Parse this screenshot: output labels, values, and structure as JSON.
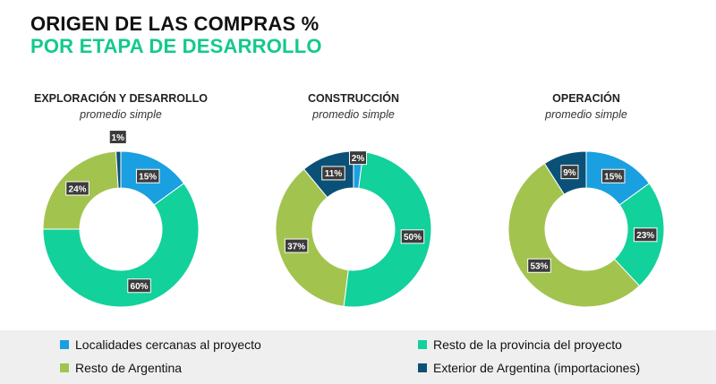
{
  "title": {
    "line1": "ORIGEN DE LAS COMPRAS %",
    "line2": "POR ETAPA DE DESARROLLO"
  },
  "colors": {
    "localidades": "#1a9fe0",
    "provincia": "#12d19a",
    "argentina": "#a3c34f",
    "exterior": "#0b5177"
  },
  "chart_data": [
    {
      "type": "pie",
      "donut": true,
      "title": "EXPLORACIÓN Y DESARROLLO",
      "subtitle": "promedio simple",
      "categories": [
        "Localidades cercanas al proyecto",
        "Resto de la provincia del proyecto",
        "Resto de Argentina",
        "Exterior de Argentina (importaciones)"
      ],
      "values": [
        15,
        60,
        24,
        1
      ],
      "labels": [
        "15%",
        "60%",
        "24%",
        "1%"
      ]
    },
    {
      "type": "pie",
      "donut": true,
      "title": "CONSTRUCCIÓN",
      "subtitle": "promedio simple",
      "categories": [
        "Localidades cercanas al proyecto",
        "Resto de la provincia del proyecto",
        "Resto de Argentina",
        "Exterior de Argentina (importaciones)"
      ],
      "values": [
        2,
        50,
        37,
        11
      ],
      "labels": [
        "2%",
        "50%",
        "37%",
        "11%"
      ]
    },
    {
      "type": "pie",
      "donut": true,
      "title": "OPERACIÓN",
      "subtitle": "promedio simple",
      "categories": [
        "Localidades cercanas al proyecto",
        "Resto de la provincia del proyecto",
        "Resto de Argentina",
        "Exterior de Argentina (importaciones)"
      ],
      "values": [
        15,
        23,
        53,
        9
      ],
      "labels": [
        "15%",
        "23%",
        "53%",
        "9%"
      ]
    }
  ],
  "legend": [
    {
      "label": "Localidades cercanas al proyecto",
      "color": "#1a9fe0"
    },
    {
      "label": "Resto de la provincia del proyecto",
      "color": "#12d19a"
    },
    {
      "label": "Resto de Argentina",
      "color": "#a3c34f"
    },
    {
      "label": "Exterior de Argentina (importaciones)",
      "color": "#0b5177"
    }
  ]
}
